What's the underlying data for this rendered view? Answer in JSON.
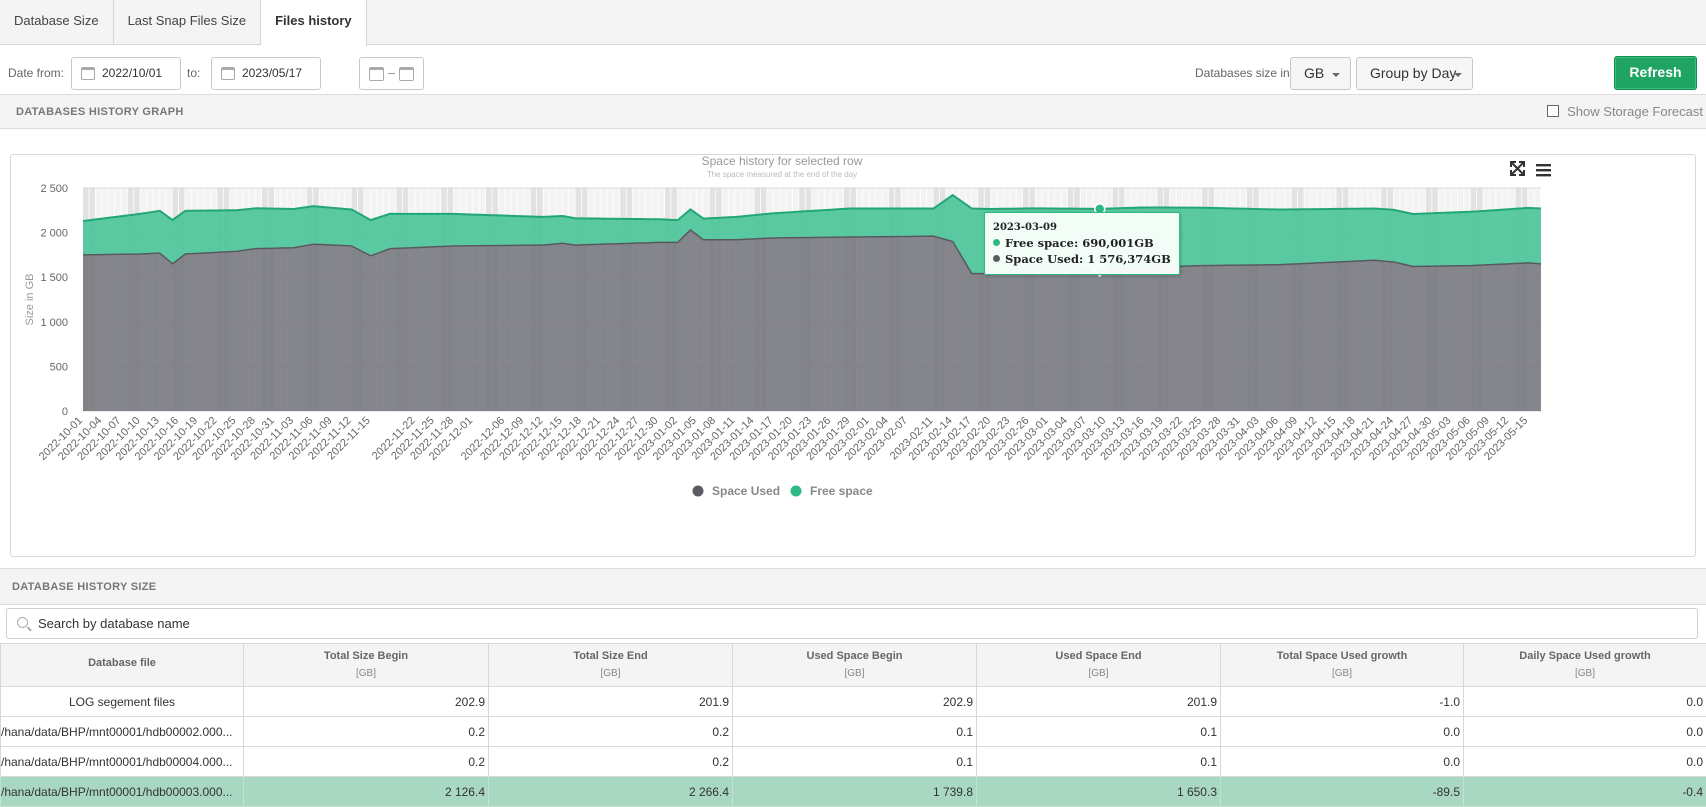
{
  "tabs": [
    {
      "label": "Database Size"
    },
    {
      "label": "Last Snap Files Size"
    },
    {
      "label": "Files history"
    }
  ],
  "filters": {
    "date_from_label": "Date from:",
    "date_from": "2022/10/01",
    "to_label": "to:",
    "date_to": "2023/05/17",
    "size_label": "Databases size in",
    "unit": "GB",
    "group_by": "Group by Day",
    "refresh_label": "Refresh"
  },
  "graph_section": {
    "title": "DATABASES HISTORY GRAPH",
    "forecast_label": "Show Storage Forecast"
  },
  "chart_data": {
    "type": "area",
    "title": "Space history for selected row",
    "subtitle": "The space measured at the end of the day",
    "ylabel": "Size in GB",
    "ylim": [
      0,
      2500
    ],
    "yticks": [
      "2 500",
      "2 000",
      "1 500",
      "1 000",
      "500",
      "0"
    ],
    "x_start": "2022-10-01",
    "x_end": "2023-05-17",
    "x_tick_labels": [
      "2022-10-01",
      "2022-10-04",
      "2022-10-07",
      "2022-10-10",
      "2022-10-13",
      "2022-10-16",
      "2022-10-19",
      "2022-10-22",
      "2022-10-25",
      "2022-10-28",
      "2022-10-31",
      "2022-11-03",
      "2022-11-06",
      "2022-11-09",
      "2022-11-12",
      "2022-11-15",
      "2022-11-22",
      "2022-11-25",
      "2022-11-28",
      "2022-12-01",
      "2022-12-06",
      "2022-12-09",
      "2022-12-12",
      "2022-12-15",
      "2022-12-18",
      "2022-12-21",
      "2022-12-24",
      "2022-12-27",
      "2022-12-30",
      "2023-01-02",
      "2023-01-05",
      "2023-01-08",
      "2023-01-11",
      "2023-01-14",
      "2023-01-17",
      "2023-01-20",
      "2023-01-23",
      "2023-01-26",
      "2023-01-29",
      "2023-02-01",
      "2023-02-04",
      "2023-02-07",
      "2023-02-11",
      "2023-02-14",
      "2023-02-17",
      "2023-02-20",
      "2023-02-23",
      "2023-02-26",
      "2023-03-01",
      "2023-03-04",
      "2023-03-07",
      "2023-03-10",
      "2023-03-13",
      "2023-03-16",
      "2023-03-19",
      "2023-03-22",
      "2023-03-25",
      "2023-03-28",
      "2023-03-31",
      "2023-04-03",
      "2023-04-06",
      "2023-04-09",
      "2023-04-12",
      "2023-04-15",
      "2023-04-18",
      "2023-04-21",
      "2023-04-24",
      "2023-04-27",
      "2023-04-30",
      "2023-05-03",
      "2023-05-06",
      "2023-05-09",
      "2023-05-12",
      "2023-05-15"
    ],
    "series": [
      {
        "name": "Space Used",
        "color": "#6d6e75",
        "points": [
          {
            "x": "2022-10-01",
            "y": 1750
          },
          {
            "x": "2022-10-10",
            "y": 1760
          },
          {
            "x": "2022-10-13",
            "y": 1770
          },
          {
            "x": "2022-10-15",
            "y": 1650
          },
          {
            "x": "2022-10-17",
            "y": 1760
          },
          {
            "x": "2022-10-25",
            "y": 1790
          },
          {
            "x": "2022-10-28",
            "y": 1820
          },
          {
            "x": "2022-11-03",
            "y": 1830
          },
          {
            "x": "2022-11-06",
            "y": 1870
          },
          {
            "x": "2022-11-12",
            "y": 1850
          },
          {
            "x": "2022-11-15",
            "y": 1740
          },
          {
            "x": "2022-11-18",
            "y": 1820
          },
          {
            "x": "2022-11-28",
            "y": 1850
          },
          {
            "x": "2022-12-12",
            "y": 1860
          },
          {
            "x": "2022-12-15",
            "y": 1880
          },
          {
            "x": "2022-12-17",
            "y": 1860
          },
          {
            "x": "2022-12-30",
            "y": 1890
          },
          {
            "x": "2023-01-02",
            "y": 1890
          },
          {
            "x": "2023-01-04",
            "y": 2030
          },
          {
            "x": "2023-01-06",
            "y": 1920
          },
          {
            "x": "2023-01-11",
            "y": 1920
          },
          {
            "x": "2023-01-17",
            "y": 1940
          },
          {
            "x": "2023-01-29",
            "y": 1950
          },
          {
            "x": "2023-02-11",
            "y": 1960
          },
          {
            "x": "2023-02-14",
            "y": 1900
          },
          {
            "x": "2023-02-17",
            "y": 1540
          },
          {
            "x": "2023-02-20",
            "y": 1540
          },
          {
            "x": "2023-02-26",
            "y": 1560
          },
          {
            "x": "2023-03-09",
            "y": 1576
          },
          {
            "x": "2023-03-16",
            "y": 1610
          },
          {
            "x": "2023-03-25",
            "y": 1630
          },
          {
            "x": "2023-04-06",
            "y": 1640
          },
          {
            "x": "2023-04-15",
            "y": 1670
          },
          {
            "x": "2023-04-21",
            "y": 1690
          },
          {
            "x": "2023-04-24",
            "y": 1670
          },
          {
            "x": "2023-04-27",
            "y": 1620
          },
          {
            "x": "2023-05-06",
            "y": 1630
          },
          {
            "x": "2023-05-12",
            "y": 1650
          },
          {
            "x": "2023-05-15",
            "y": 1660
          },
          {
            "x": "2023-05-17",
            "y": 1650
          }
        ]
      },
      {
        "name": "Free space",
        "color": "#4dc69a",
        "points": [
          {
            "x": "2022-10-01",
            "y": 380
          },
          {
            "x": "2022-10-15",
            "y": 490
          },
          {
            "x": "2022-11-15",
            "y": 400
          },
          {
            "x": "2023-01-02",
            "y": 250
          },
          {
            "x": "2023-01-04",
            "y": 230
          },
          {
            "x": "2023-01-29",
            "y": 320
          },
          {
            "x": "2023-02-11",
            "y": 310
          },
          {
            "x": "2023-02-17",
            "y": 730
          },
          {
            "x": "2023-03-09",
            "y": 690
          },
          {
            "x": "2023-04-21",
            "y": 580
          },
          {
            "x": "2023-05-17",
            "y": 620
          }
        ]
      }
    ],
    "total_line": [
      {
        "x": "2022-10-01",
        "y": 2130
      },
      {
        "x": "2023-01-02",
        "y": 2130
      },
      {
        "x": "2023-01-05",
        "y": 2270
      },
      {
        "x": "2023-05-17",
        "y": 2270
      }
    ],
    "tooltip": {
      "date": "2023-03-09",
      "free_label": "Free space: 690,001GB",
      "used_label": "Space Used: 1 576,374GB"
    },
    "legend": [
      {
        "name": "Space Used",
        "color": "#5b5c63"
      },
      {
        "name": "Free space",
        "color": "#2eb886"
      }
    ],
    "legend_placement": "bottom"
  },
  "table_section": {
    "title": "DATABASE HISTORY SIZE",
    "search_placeholder": "Search by database name"
  },
  "table": {
    "columns": [
      {
        "label": "Database file",
        "unit": ""
      },
      {
        "label": "Total Size Begin",
        "unit": "[GB]"
      },
      {
        "label": "Total Size End",
        "unit": "[GB]"
      },
      {
        "label": "Used Space Begin",
        "unit": "[GB]"
      },
      {
        "label": "Used Space End",
        "unit": "[GB]"
      },
      {
        "label": "Total Space Used growth",
        "unit": "[GB]"
      },
      {
        "label": "Daily Space Used growth",
        "unit": "[GB]"
      }
    ],
    "rows": [
      {
        "cells": [
          "LOG segement files",
          "202.9",
          "201.9",
          "202.9",
          "201.9",
          "-1.0",
          "0.0"
        ]
      },
      {
        "cells": [
          "/hana/data/BHP/mnt00001/hdb00002.000...",
          "0.2",
          "0.2",
          "0.1",
          "0.1",
          "0.0",
          "0.0"
        ]
      },
      {
        "cells": [
          "/hana/data/BHP/mnt00001/hdb00004.000...",
          "0.2",
          "0.2",
          "0.1",
          "0.1",
          "0.0",
          "0.0"
        ]
      },
      {
        "cells": [
          "/hana/data/BHP/mnt00001/hdb00003.000...",
          "2 126.4",
          "2 266.4",
          "1 739.8",
          "1 650.3",
          "-89.5",
          "-0.4"
        ]
      }
    ]
  }
}
